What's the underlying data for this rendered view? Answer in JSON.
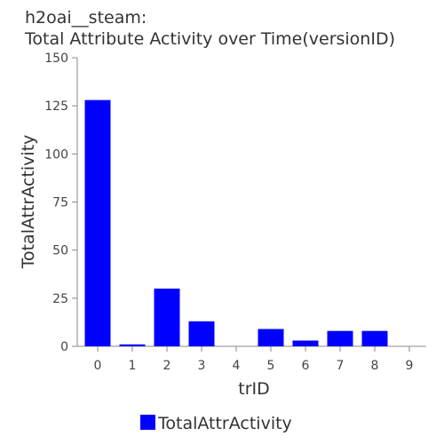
{
  "chart_data": {
    "type": "bar",
    "title_line1": "h2oai__steam:",
    "title_line2": "Total Attribute Activity over Time(versionID)",
    "xlabel": "trID",
    "ylabel": "TotalAttrActivity",
    "categories": [
      "0",
      "1",
      "2",
      "3",
      "4",
      "5",
      "6",
      "7",
      "8",
      "9"
    ],
    "series": [
      {
        "name": "TotalAttrActivity",
        "values": [
          128,
          1,
          30,
          13,
          0,
          9,
          3,
          8,
          8,
          0
        ]
      }
    ],
    "ylim": [
      0,
      150
    ],
    "yticks": [
      0,
      25,
      50,
      75,
      100,
      125,
      150
    ],
    "bar_color": "#0000ff",
    "grid": false,
    "legend_position": "bottom"
  }
}
